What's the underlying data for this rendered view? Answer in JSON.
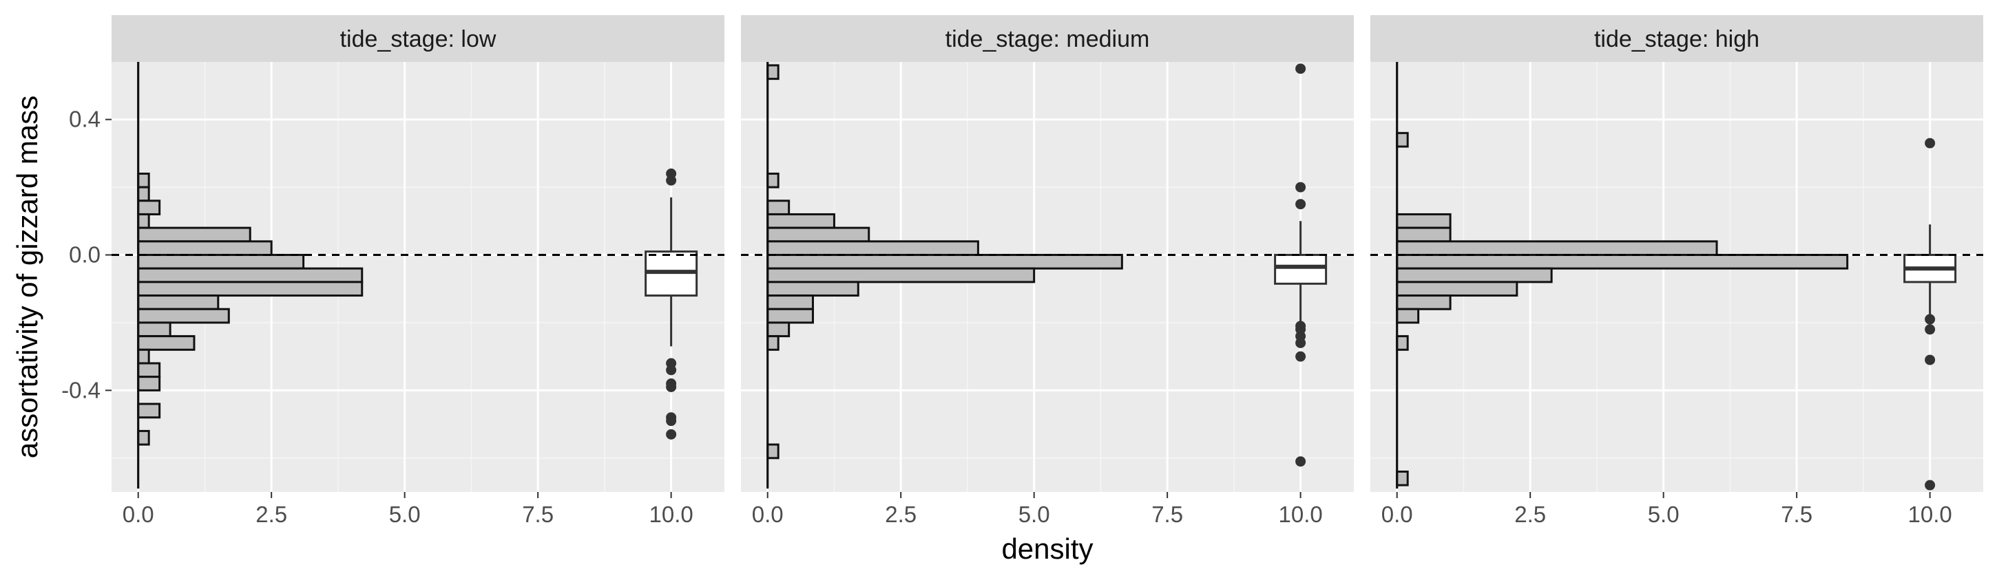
{
  "chart_data": {
    "type": "histogram+boxplot",
    "xlabel": "density",
    "ylabel": "assortativity of gizzard mass",
    "xlim": [
      -0.5,
      11.0
    ],
    "ylim": [
      -0.7,
      0.57
    ],
    "x_ticks": [
      0,
      2.5,
      5,
      7.5,
      10
    ],
    "x_tick_labels": [
      "0.0",
      "2.5",
      "5.0",
      "7.5",
      "10.0"
    ],
    "y_ticks": [
      0.4,
      0.0,
      -0.4
    ],
    "y_tick_labels": [
      "0.4",
      "0.0",
      "-0.4"
    ],
    "grid": true,
    "reference_line": {
      "y": 0.0,
      "style": "dashed"
    },
    "bin_width": 0.04,
    "facets": [
      {
        "strip": "tide_stage: low",
        "histogram": [
          [
            0.22,
            0.2
          ],
          [
            0.18,
            0.2
          ],
          [
            0.14,
            0.4
          ],
          [
            0.1,
            0.2
          ],
          [
            0.06,
            2.1
          ],
          [
            0.02,
            2.5
          ],
          [
            -0.02,
            3.1
          ],
          [
            -0.06,
            4.2
          ],
          [
            -0.1,
            4.2
          ],
          [
            -0.14,
            1.5
          ],
          [
            -0.18,
            1.7
          ],
          [
            -0.22,
            0.6
          ],
          [
            -0.26,
            1.05
          ],
          [
            -0.3,
            0.2
          ],
          [
            -0.34,
            0.4
          ],
          [
            -0.38,
            0.4
          ],
          [
            -0.46,
            0.4
          ],
          [
            -0.54,
            0.2
          ]
        ],
        "boxplot": {
          "x": 10,
          "lower_whisker": -0.27,
          "q1": -0.12,
          "median": -0.05,
          "q3": 0.01,
          "upper_whisker": 0.17,
          "outliers": [
            0.24,
            0.22,
            -0.32,
            -0.34,
            -0.38,
            -0.39,
            -0.48,
            -0.49,
            -0.53
          ]
        }
      },
      {
        "strip": "tide_stage: medium",
        "histogram": [
          [
            0.54,
            0.2
          ],
          [
            0.22,
            0.2
          ],
          [
            0.14,
            0.4
          ],
          [
            0.1,
            1.25
          ],
          [
            0.06,
            1.9
          ],
          [
            0.02,
            3.95
          ],
          [
            -0.02,
            6.65
          ],
          [
            -0.06,
            5.0
          ],
          [
            -0.1,
            1.7
          ],
          [
            -0.14,
            0.85
          ],
          [
            -0.18,
            0.85
          ],
          [
            -0.22,
            0.4
          ],
          [
            -0.26,
            0.2
          ],
          [
            -0.58,
            0.2
          ]
        ],
        "boxplot": {
          "x": 10,
          "lower_whisker": -0.2,
          "q1": -0.085,
          "median": -0.035,
          "q3": 0.0,
          "upper_whisker": 0.1,
          "outliers": [
            0.55,
            0.2,
            0.15,
            -0.21,
            -0.22,
            -0.24,
            -0.26,
            -0.3,
            -0.61
          ]
        }
      },
      {
        "strip": "tide_stage: high",
        "histogram": [
          [
            0.34,
            0.2
          ],
          [
            0.1,
            1.0
          ],
          [
            0.06,
            1.0
          ],
          [
            0.02,
            6.0
          ],
          [
            -0.02,
            8.45
          ],
          [
            -0.06,
            2.9
          ],
          [
            -0.1,
            2.25
          ],
          [
            -0.14,
            1.0
          ],
          [
            -0.18,
            0.4
          ],
          [
            -0.26,
            0.2
          ],
          [
            -0.66,
            0.2
          ]
        ],
        "boxplot": {
          "x": 10,
          "lower_whisker": -0.18,
          "q1": -0.08,
          "median": -0.04,
          "q3": 0.0,
          "upper_whisker": 0.09,
          "outliers": [
            0.33,
            -0.19,
            -0.22,
            -0.31,
            -0.68
          ]
        }
      }
    ]
  }
}
